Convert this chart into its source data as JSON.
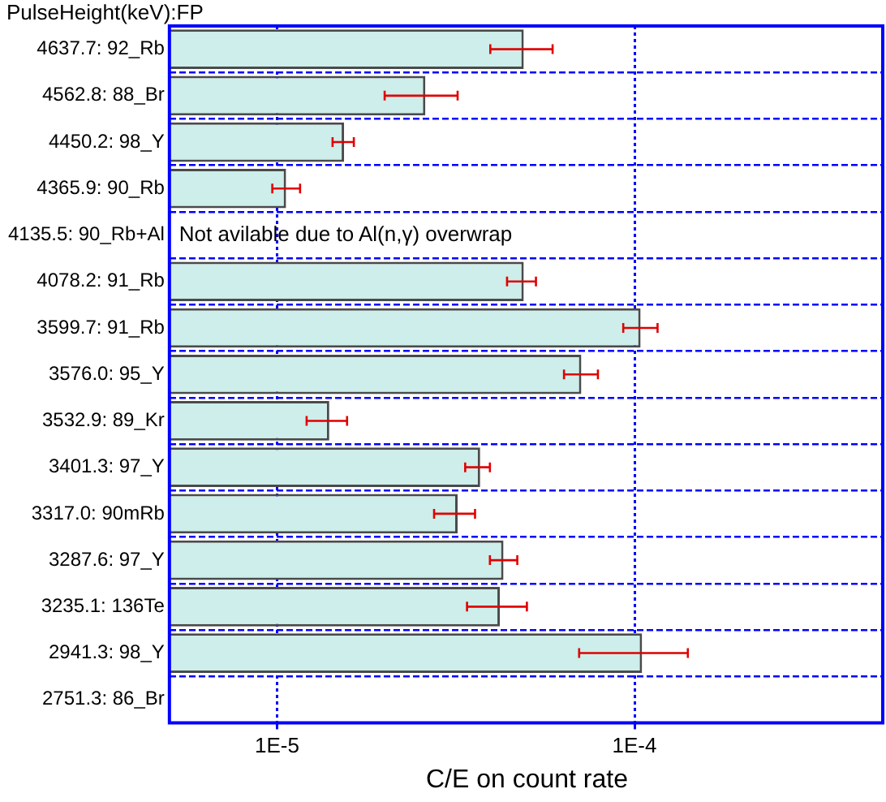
{
  "chart_data": {
    "type": "bar",
    "orientation": "horizontal",
    "ylabel": "PulseHeight(keV):FP",
    "xlabel": "C/E on count rate",
    "categories": [
      "4637.7: 92_Rb",
      "4562.8: 88_Br",
      "4450.2: 98_Y",
      "4365.9: 90_Rb",
      "4135.5: 90_Rb+Al",
      "4078.2: 91_Rb",
      "3599.7: 91_Rb",
      "3576.0: 95_Y",
      "3532.9: 89_Kr",
      "3401.3: 97_Y",
      "3317.0: 90mRb",
      "3287.6: 97_Y",
      "3235.1: 136Te",
      "2941.3: 98_Y",
      "2751.3: 86_Br"
    ],
    "values": [
      4.9e-05,
      2.6e-05,
      1.54e-05,
      1.06e-05,
      null,
      4.9e-05,
      0.000104,
      7.1e-05,
      1.4e-05,
      3.7e-05,
      3.2e-05,
      4.3e-05,
      4.2e-05,
      0.000105,
      null
    ],
    "errors": [
      [
        3.95e-05,
        5.9e-05
      ],
      [
        2e-05,
        3.2e-05
      ],
      [
        1.43e-05,
        1.64e-05
      ],
      [
        9.7e-06,
        1.16e-05
      ],
      null,
      [
        4.4e-05,
        5.3e-05
      ],
      [
        9.3e-05,
        0.000116
      ],
      [
        6.35e-05,
        7.9e-05
      ],
      [
        1.21e-05,
        1.57e-05
      ],
      [
        3.36e-05,
        3.94e-05
      ],
      [
        2.75e-05,
        3.58e-05
      ],
      [
        3.94e-05,
        4.7e-05
      ],
      [
        3.4e-05,
        5e-05
      ],
      [
        7e-05,
        0.000141
      ],
      null
    ],
    "color": "#cdeeea",
    "log": "x",
    "xlim": [
      5e-06,
      0.0005
    ],
    "xticks": [
      {
        "value": 1e-05,
        "label": "1E-5"
      },
      {
        "value": 0.0001,
        "label": "1E-4"
      }
    ],
    "grid": true,
    "legend": false,
    "annotations": [
      "Not avilable due to Al(n,γ) overwrap"
    ]
  }
}
